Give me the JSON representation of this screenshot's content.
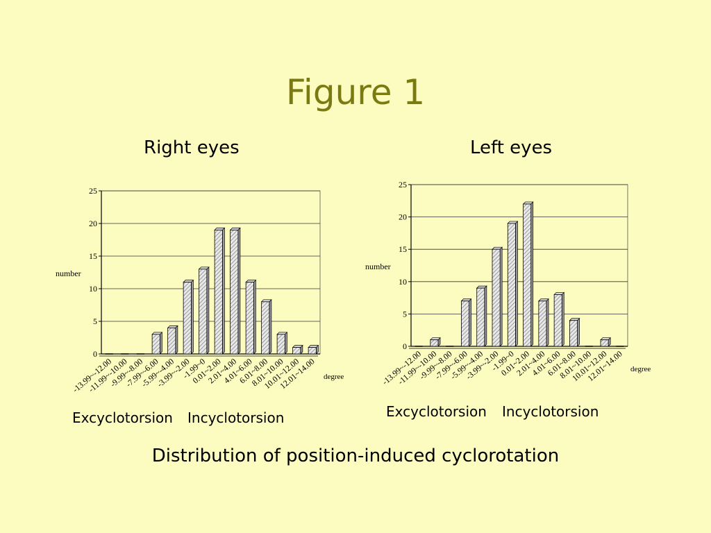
{
  "slide": {
    "title": "Figure 1",
    "caption": "Distribution of position-induced cyclorotation"
  },
  "panels": [
    {
      "title": "Right eyes",
      "excyclo_label": "Excyclotorsion",
      "incyclo_label": "Incyclotorsion"
    },
    {
      "title": "Left eyes",
      "excyclo_label": "Excyclotorsion",
      "incyclo_label": "Incyclotorsion"
    }
  ],
  "chart_data": [
    {
      "type": "bar",
      "title": "",
      "ylabel": "number",
      "xlabel": "degree",
      "ylim": [
        0,
        25
      ],
      "yticks": [
        0,
        5,
        10,
        15,
        20,
        25
      ],
      "grid": true,
      "categories": [
        "-13.99~-12.00",
        "-11.99~-10.00",
        "-9.99~-8.00",
        "-7.99~-6.00",
        "-5.99~-4.00",
        "-3.99~-2.00",
        "-1.99~0",
        "0.01~2.00",
        "2.01~4.00",
        "4.01~6.00",
        "6.01~8.00",
        "8.01~10.00",
        "10.01~12.00",
        "12.01~14.00"
      ],
      "values": [
        0,
        0,
        0,
        3,
        4,
        11,
        13,
        19,
        19,
        11,
        8,
        3,
        1,
        1
      ]
    },
    {
      "type": "bar",
      "title": "",
      "ylabel": "number",
      "xlabel": "degree",
      "ylim": [
        0,
        25
      ],
      "yticks": [
        0,
        5,
        10,
        15,
        20,
        25
      ],
      "grid": true,
      "categories": [
        "-13.99~-12.00",
        "-11.99~-10.00",
        "-9.99~-8.00",
        "-7.99~-6.00",
        "-5.99~-4.00",
        "-3.99~-2.00",
        "-1.99~0",
        "0.01~2.00",
        "2.01~4.00",
        "4.01~6.00",
        "6.01~8.00",
        "8.01~10.00",
        "10.01~12.00",
        "12.01~14.00"
      ],
      "values": [
        0,
        1,
        0,
        7,
        9,
        15,
        19,
        22,
        7,
        8,
        4,
        0,
        1,
        0
      ]
    }
  ]
}
